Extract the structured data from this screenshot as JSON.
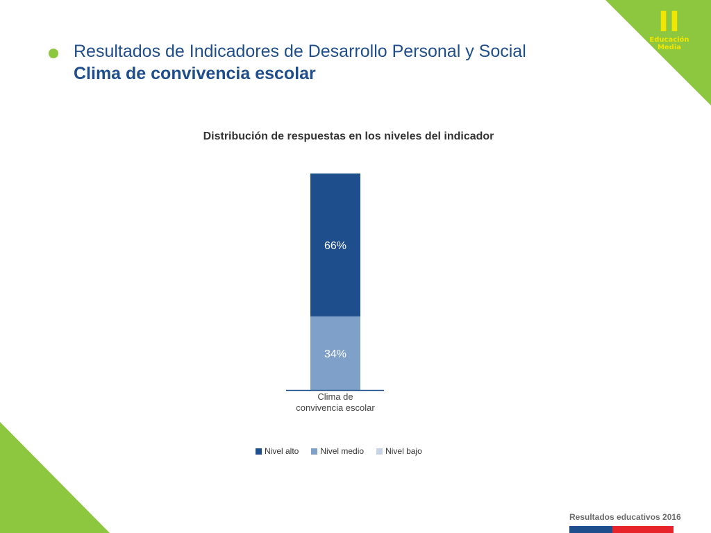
{
  "badge": {
    "numeral": "II",
    "line1": "Educación",
    "line2": "Media"
  },
  "header": {
    "title": "Resultados de Indicadores de Desarrollo Personal y Social",
    "subtitle": "Clima de convivencia escolar"
  },
  "chart_data": {
    "type": "bar",
    "stacked": true,
    "title": "Distribución de respuestas en los niveles del indicador",
    "categories": [
      "Clima de\nconvivencia escolar"
    ],
    "category_lines": [
      "Clima de",
      "convivencia escolar"
    ],
    "series": [
      {
        "name": "Nivel alto",
        "values": [
          66
        ],
        "label": "66%",
        "color": "#1f4e8c"
      },
      {
        "name": "Nivel medio",
        "values": [
          34
        ],
        "label": "34%",
        "color": "#7fa0c8"
      },
      {
        "name": "Nivel bajo",
        "values": [
          0
        ],
        "label": "",
        "color": "#c7d3e6"
      }
    ],
    "ylim": [
      0,
      100
    ],
    "grid": false,
    "legend_position": "bottom"
  },
  "footer": {
    "text": "Resultados educativos 2016"
  },
  "colors": {
    "accent": "#8dc63f",
    "title": "#1f4e8c",
    "badge_text": "#f2e600"
  }
}
